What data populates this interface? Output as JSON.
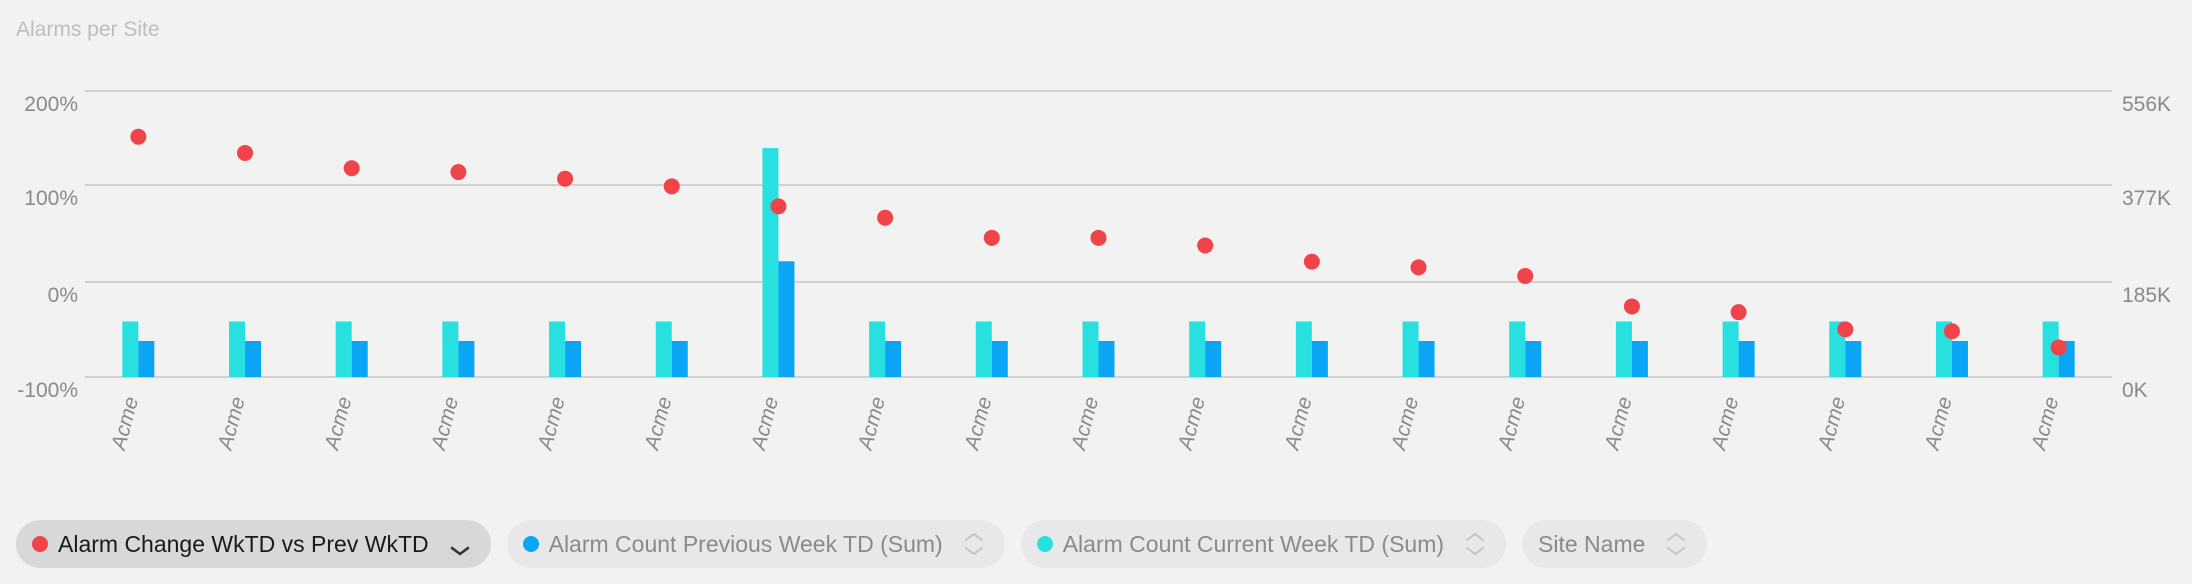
{
  "chart_data": {
    "type": "bar",
    "title": "Alarms per Site",
    "categories": [
      "Acme",
      "Acme",
      "Acme",
      "Acme",
      "Acme",
      "Acme",
      "Acme",
      "Acme",
      "Acme",
      "Acme",
      "Acme",
      "Acme",
      "Acme",
      "Acme",
      "Acme",
      "Acme",
      "Acme",
      "Acme",
      "Acme"
    ],
    "y_left": {
      "ticks": [
        "200%",
        "100%",
        "0%",
        "-100%"
      ],
      "range": [
        -100,
        200
      ],
      "unit": "%"
    },
    "y_right": {
      "ticks": [
        "556K",
        "377K",
        "185K",
        "0K"
      ],
      "range": [
        0,
        556
      ]
    },
    "grid": true,
    "series": [
      {
        "name": "Alarm Count Current Week TD (Sum)",
        "type": "bar",
        "axis": "right",
        "color": "#29e0e0",
        "values": [
          108,
          108,
          108,
          108,
          108,
          108,
          445,
          108,
          108,
          108,
          108,
          108,
          108,
          108,
          108,
          108,
          108,
          108,
          108
        ]
      },
      {
        "name": "Alarm Count Previous  Week TD (Sum)",
        "type": "bar",
        "axis": "right",
        "color": "#0aa6f5",
        "values": [
          70,
          70,
          70,
          70,
          70,
          70,
          225,
          70,
          70,
          70,
          70,
          70,
          70,
          70,
          70,
          70,
          70,
          70,
          70
        ]
      },
      {
        "name": "Alarm Change WkTD vs Prev WkTD",
        "type": "scatter",
        "axis": "left",
        "color": "#f0434a",
        "values": [
          152,
          135,
          119,
          115,
          108,
          100,
          79,
          67,
          46,
          46,
          38,
          21,
          15,
          6,
          -26,
          -32,
          -50,
          -52,
          -69
        ]
      }
    ]
  },
  "legend": [
    {
      "label": "Alarm Change WkTD vs Prev WkTD",
      "color": "#f0434a",
      "active": true
    },
    {
      "label": "Alarm Count Previous  Week TD (Sum)",
      "color": "#0aa6f5",
      "active": false
    },
    {
      "label": "Alarm Count Current Week TD (Sum)",
      "color": "#29e0e0",
      "active": false
    },
    {
      "label": "Site Name",
      "color": null,
      "active": false
    }
  ]
}
